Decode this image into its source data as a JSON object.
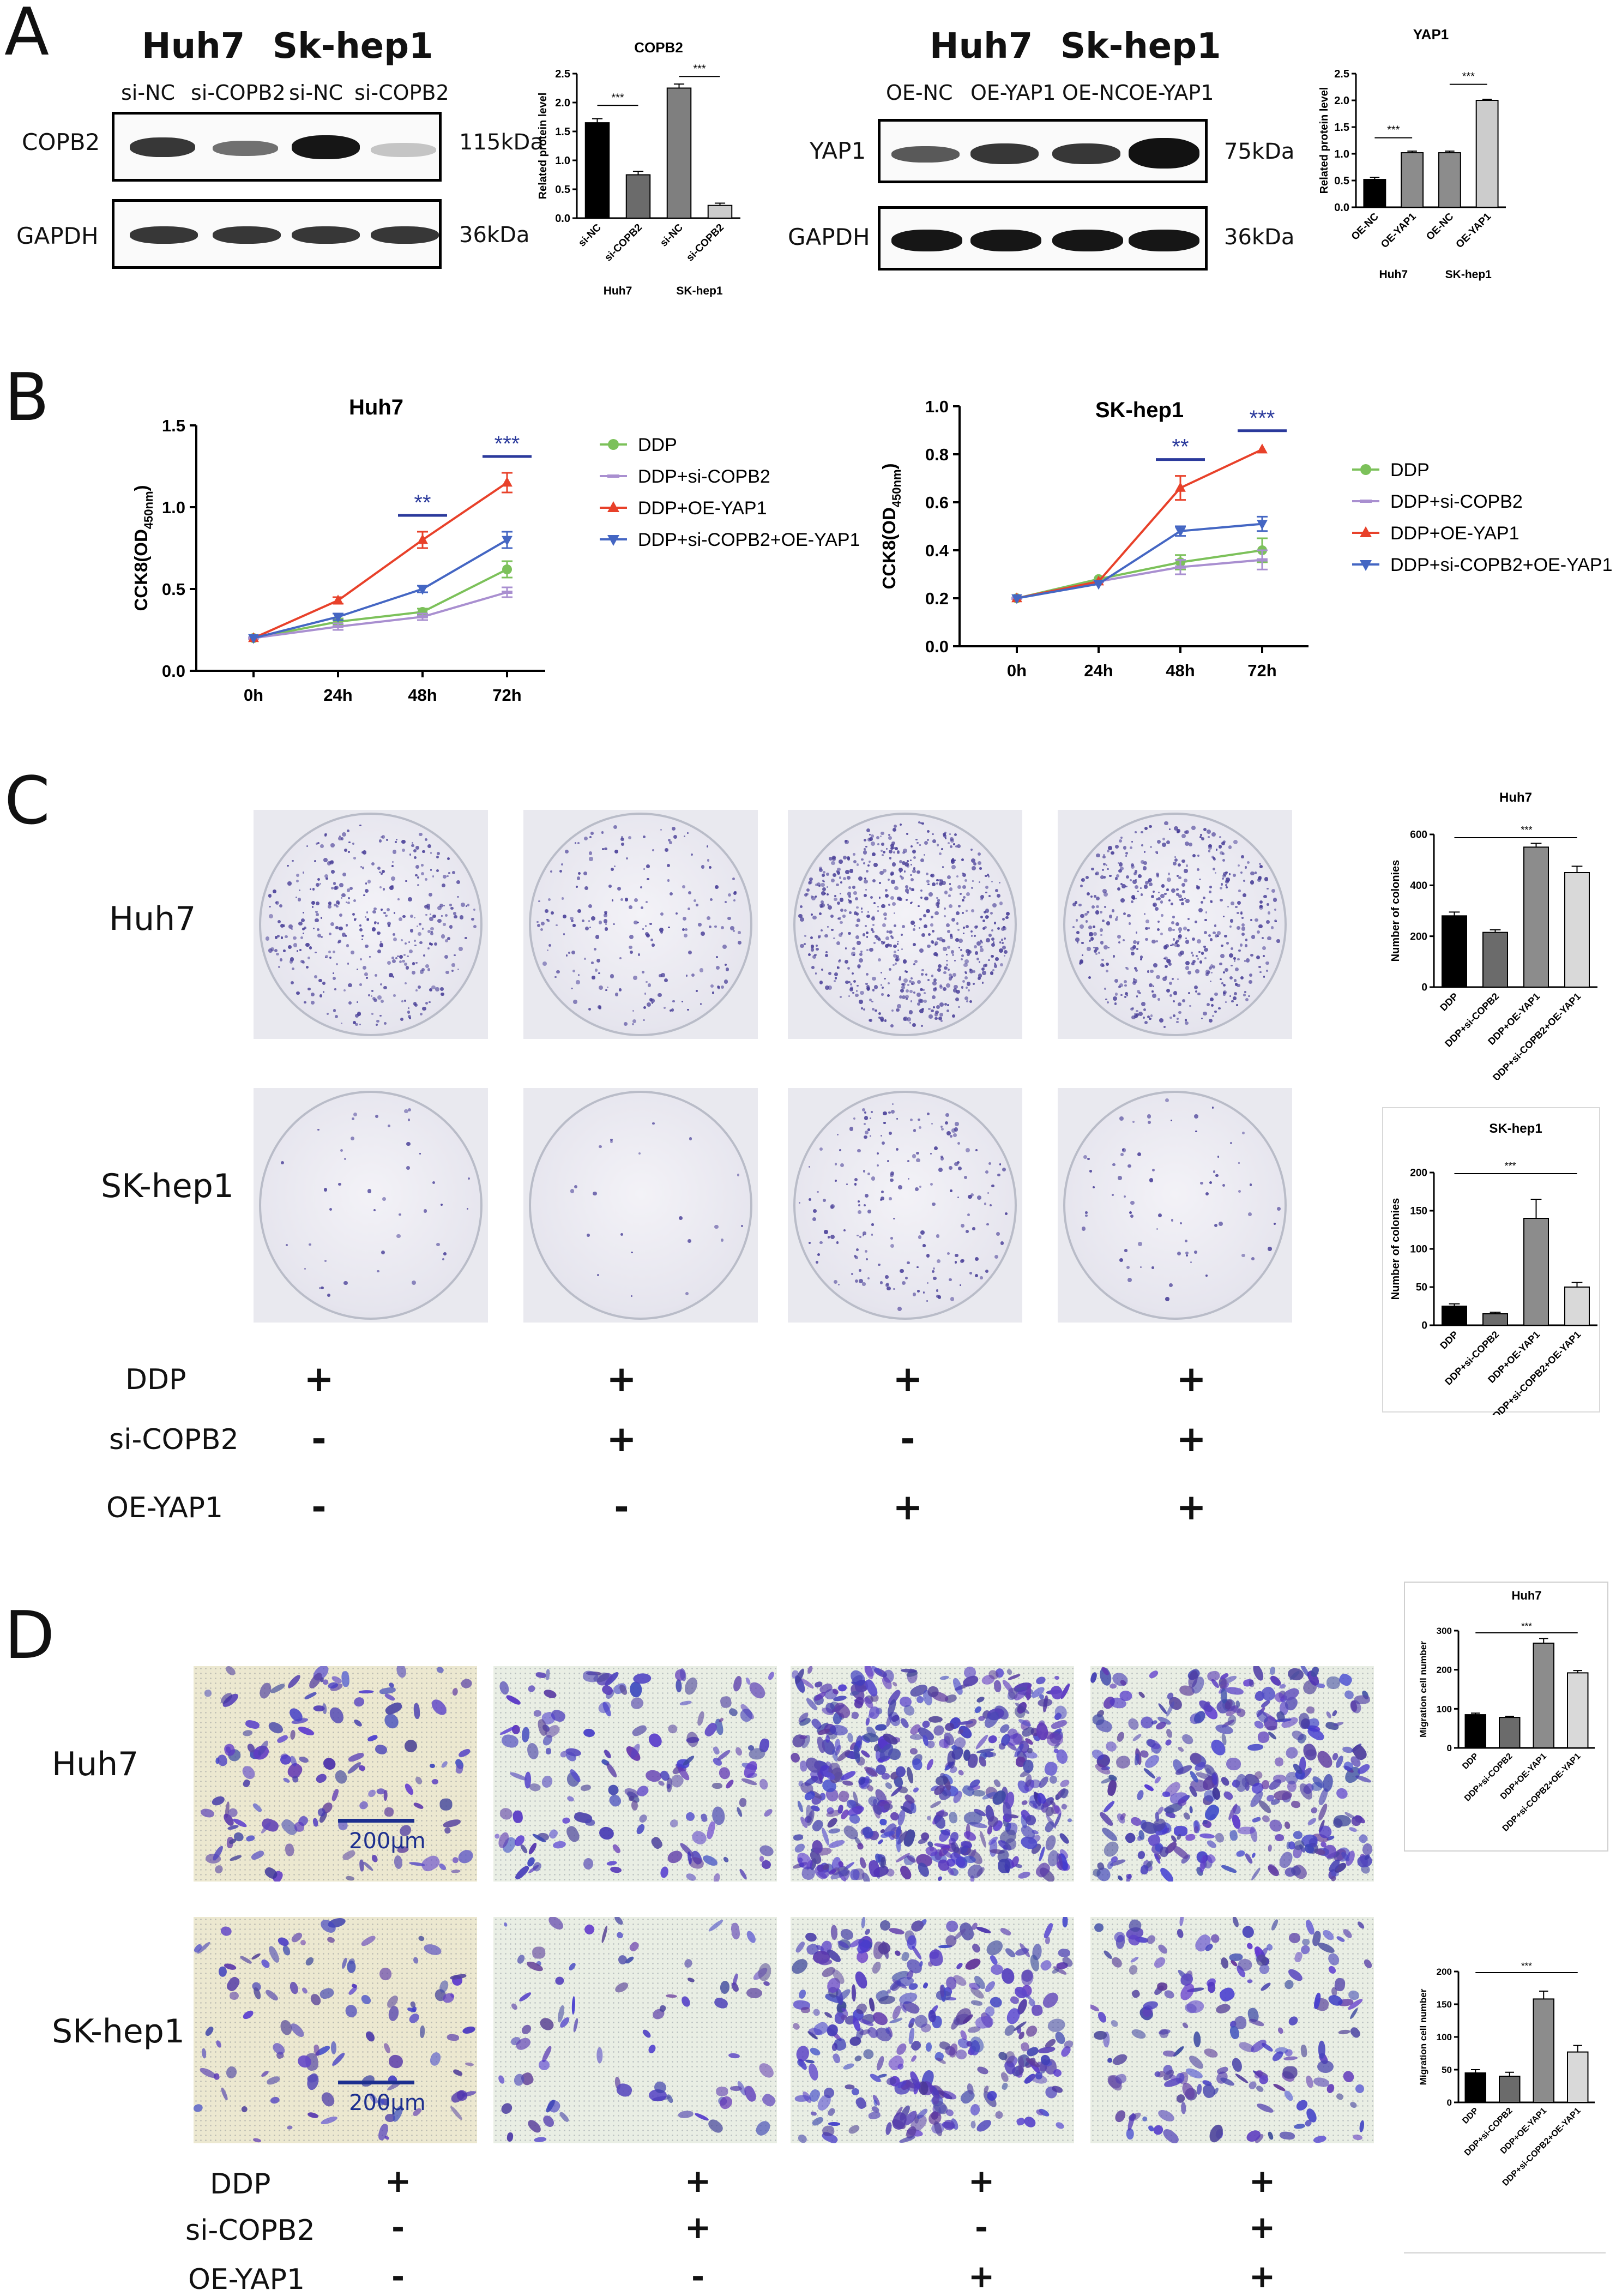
{
  "panels": {
    "A": "A",
    "B": "B",
    "C": "C",
    "D": "D"
  },
  "panel_a": {
    "left_blot": {
      "cell_lines": [
        "Huh7",
        "Sk-hep1"
      ],
      "lanes": [
        "si-NC",
        "si-COPB2",
        "si-NC",
        "si-COPB2"
      ],
      "bands": [
        {
          "name": "COPB2",
          "kda": "115kDa",
          "intensity": [
            0.85,
            0.6,
            1.0,
            0.25
          ]
        },
        {
          "name": "GAPDH",
          "kda": "36kDa",
          "intensity": [
            0.85,
            0.85,
            0.85,
            0.85
          ]
        }
      ]
    },
    "right_blot": {
      "cell_lines": [
        "Huh7",
        "Sk-hep1"
      ],
      "lanes": [
        "OE-NC",
        "OE-YAP1",
        "OE-NC",
        "OE-YAP1"
      ],
      "bands": [
        {
          "name": "YAP1",
          "kda": "75kDa",
          "intensity": [
            0.7,
            0.85,
            0.85,
            1.0
          ]
        },
        {
          "name": "GAPDH",
          "kda": "36kDa",
          "intensity": [
            0.95,
            0.95,
            0.95,
            0.95
          ]
        }
      ]
    }
  },
  "chart_data": [
    {
      "id": "copb2-bar",
      "type": "bar",
      "title": "COPB2",
      "ylabel": "Related protein level",
      "ylim": [
        0,
        2.5
      ],
      "yticks": [
        "0.0",
        "0.5",
        "1.0",
        "1.5",
        "2.0",
        "2.5"
      ],
      "categories": [
        "si-NC",
        "si-COPB2",
        "si-NC",
        "si-COPB2"
      ],
      "values": [
        1.65,
        0.75,
        2.25,
        0.22
      ],
      "errors": [
        0.07,
        0.06,
        0.07,
        0.04
      ],
      "colors": [
        "#000000",
        "#6b6b6b",
        "#7f7f7f",
        "#cccccc"
      ],
      "groups": [
        "Huh7",
        "SK-hep1"
      ],
      "significance": [
        "***",
        "***"
      ]
    },
    {
      "id": "yap1-bar",
      "type": "bar",
      "title": "YAP1",
      "ylabel": "Related protein level",
      "ylim": [
        0,
        2.5
      ],
      "yticks": [
        "0.0",
        "0.5",
        "1.0",
        "1.5",
        "2.0",
        "2.5"
      ],
      "categories": [
        "OE-NC",
        "OE-YAP1",
        "OE-NC",
        "OE-YAP1"
      ],
      "values": [
        0.52,
        1.02,
        1.02,
        2.0
      ],
      "errors": [
        0.04,
        0.03,
        0.03,
        0.02
      ],
      "colors": [
        "#000000",
        "#8c8c8c",
        "#8c8c8c",
        "#cccccc"
      ],
      "groups": [
        "Huh7",
        "SK-hep1"
      ],
      "significance": [
        "***",
        "***"
      ]
    },
    {
      "id": "cck8-huh7",
      "type": "line",
      "title": "Huh7",
      "ylabel": "CCK8(OD",
      "ylabel_sub": "450nm",
      "ylabel_close": ")",
      "ylim": [
        0,
        1.5
      ],
      "yticks": [
        "0.0",
        "0.5",
        "1.0",
        "1.5"
      ],
      "x": [
        "0h",
        "24h",
        "48h",
        "72h"
      ],
      "series": [
        {
          "name": "DDP",
          "color": "#7cc15a",
          "marker": "circle",
          "values": [
            0.2,
            0.3,
            0.36,
            0.62
          ],
          "errors": [
            0.01,
            0.02,
            0.02,
            0.05
          ]
        },
        {
          "name": "DDP+si-COPB2",
          "color": "#a98fd0",
          "marker": "bar",
          "values": [
            0.2,
            0.27,
            0.33,
            0.48
          ],
          "errors": [
            0.01,
            0.02,
            0.02,
            0.03
          ]
        },
        {
          "name": "DDP+OE-YAP1",
          "color": "#e8412a",
          "marker": "triangle-up",
          "values": [
            0.2,
            0.43,
            0.8,
            1.15
          ],
          "errors": [
            0.01,
            0.02,
            0.05,
            0.06
          ]
        },
        {
          "name": "DDP+si-COPB2+OE-YAP1",
          "color": "#4466c3",
          "marker": "triangle-down",
          "values": [
            0.2,
            0.33,
            0.5,
            0.8
          ],
          "errors": [
            0.01,
            0.02,
            0.02,
            0.05
          ]
        }
      ],
      "significance": [
        {
          "at": "48h",
          "label": "**"
        },
        {
          "at": "72h",
          "label": "***"
        }
      ]
    },
    {
      "id": "cck8-skhep1",
      "type": "line",
      "title": "SK-hep1",
      "ylabel": "CCK8(OD",
      "ylabel_sub": "450nm",
      "ylabel_close": ")",
      "ylim": [
        0,
        1.0
      ],
      "yticks": [
        "0.0",
        "0.2",
        "0.4",
        "0.6",
        "0.8",
        "1.0"
      ],
      "x": [
        "0h",
        "24h",
        "48h",
        "72h"
      ],
      "series": [
        {
          "name": "DDP",
          "color": "#7cc15a",
          "marker": "circle",
          "values": [
            0.2,
            0.28,
            0.35,
            0.4
          ],
          "errors": [
            0.01,
            0.01,
            0.03,
            0.05
          ]
        },
        {
          "name": "DDP+si-COPB2",
          "color": "#a98fd0",
          "marker": "bar",
          "values": [
            0.2,
            0.27,
            0.33,
            0.36
          ],
          "errors": [
            0.01,
            0.01,
            0.03,
            0.04
          ]
        },
        {
          "name": "DDP+OE-YAP1",
          "color": "#e8412a",
          "marker": "triangle-up",
          "values": [
            0.2,
            0.27,
            0.66,
            0.82
          ],
          "errors": [
            0.01,
            0.01,
            0.05,
            0.01
          ]
        },
        {
          "name": "DDP+si-COPB2+OE-YAP1",
          "color": "#4466c3",
          "marker": "triangle-down",
          "values": [
            0.2,
            0.26,
            0.48,
            0.51
          ],
          "errors": [
            0.01,
            0.01,
            0.02,
            0.03
          ]
        }
      ],
      "significance": [
        {
          "at": "48h",
          "label": "**"
        },
        {
          "at": "72h",
          "label": "***"
        }
      ]
    },
    {
      "id": "colony-huh7",
      "type": "bar",
      "title": "Huh7",
      "ylabel": "Number of colonies",
      "ylim": [
        0,
        600
      ],
      "yticks": [
        "0",
        "200",
        "400",
        "600"
      ],
      "categories": [
        "DDP",
        "DDP+si-COPB2",
        "DDP+OE-YAP1",
        "DDP+si-COPB2+OE-YAP1"
      ],
      "values": [
        280,
        215,
        550,
        450
      ],
      "errors": [
        15,
        10,
        15,
        25
      ],
      "colors": [
        "#000000",
        "#6b6b6b",
        "#8c8c8c",
        "#d9d9d9"
      ],
      "significance": [
        "***"
      ]
    },
    {
      "id": "colony-skhep1",
      "type": "bar",
      "title": "SK-hep1",
      "ylabel": "Number of colonies",
      "ylim": [
        0,
        200
      ],
      "yticks": [
        "0",
        "50",
        "100",
        "150",
        "200"
      ],
      "categories": [
        "DDP",
        "DDP+si-COPB2",
        "DDP+OE-YAP1",
        "DDP+si-COPB2+OE-YAP1"
      ],
      "values": [
        25,
        15,
        140,
        50
      ],
      "errors": [
        3,
        2,
        25,
        6
      ],
      "colors": [
        "#000000",
        "#6b6b6b",
        "#8c8c8c",
        "#d9d9d9"
      ],
      "significance": [
        "***"
      ]
    },
    {
      "id": "migration-huh7",
      "type": "bar",
      "title": "Huh7",
      "ylabel": "Migration cell number",
      "ylim": [
        0,
        300
      ],
      "yticks": [
        "0",
        "100",
        "200",
        "300"
      ],
      "categories": [
        "DDP",
        "DDP+si-COPB2",
        "DDP+OE-YAP1",
        "DDP+si-COPB2+OE-YAP1"
      ],
      "values": [
        85,
        78,
        268,
        192
      ],
      "errors": [
        4,
        3,
        12,
        6
      ],
      "colors": [
        "#000000",
        "#6b6b6b",
        "#8c8c8c",
        "#d9d9d9"
      ],
      "significance": [
        "***"
      ]
    },
    {
      "id": "migration-skhep1",
      "type": "bar",
      "title": "",
      "ylabel": "Migration cell number",
      "ylim": [
        0,
        200
      ],
      "yticks": [
        "0",
        "50",
        "100",
        "150",
        "200"
      ],
      "categories": [
        "DDP",
        "DDP+si-COPB2",
        "DDP+OE-YAP1",
        "DDP+si-COPB2+OE-YAP1"
      ],
      "values": [
        45,
        40,
        158,
        77
      ],
      "errors": [
        5,
        6,
        12,
        10
      ],
      "colors": [
        "#000000",
        "#6b6b6b",
        "#8c8c8c",
        "#d9d9d9"
      ],
      "significance": [
        "***"
      ]
    }
  ],
  "panel_c": {
    "row_labels": [
      "Huh7",
      "SK-hep1"
    ],
    "colony_density": [
      [
        0.55,
        0.3,
        0.95,
        0.75
      ],
      [
        0.06,
        0.03,
        0.28,
        0.1
      ]
    ],
    "treatments": [
      {
        "label": "DDP",
        "signs": [
          "+",
          "+",
          "+",
          "+"
        ]
      },
      {
        "label": "si-COPB2",
        "signs": [
          "-",
          "+",
          "-",
          "+"
        ]
      },
      {
        "label": "OE-YAP1",
        "signs": [
          "-",
          "-",
          "+",
          "+"
        ]
      }
    ]
  },
  "panel_d": {
    "row_labels": [
      "Huh7",
      "SK-hep1"
    ],
    "scale_bar": "200μm",
    "cell_density": [
      [
        0.25,
        0.3,
        0.95,
        0.65
      ],
      [
        0.2,
        0.15,
        0.6,
        0.35
      ]
    ],
    "treatments": [
      {
        "label": "DDP",
        "signs": [
          "+",
          "+",
          "+",
          "+"
        ]
      },
      {
        "label": "si-COPB2",
        "signs": [
          "-",
          "+",
          "-",
          "+"
        ]
      },
      {
        "label": "OE-YAP1",
        "signs": [
          "-",
          "-",
          "+",
          "+"
        ]
      }
    ]
  }
}
